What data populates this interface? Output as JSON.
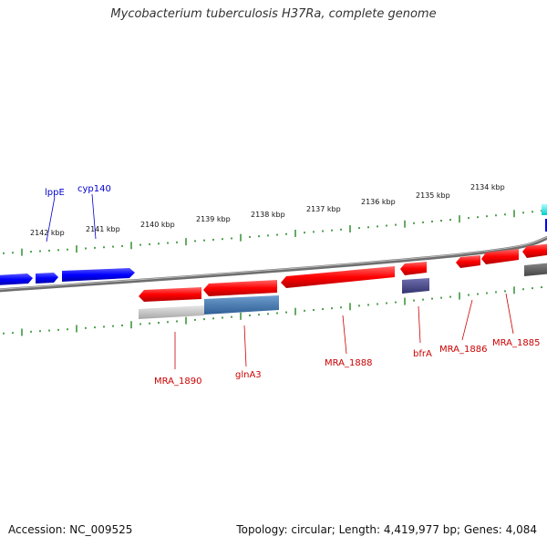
{
  "title": "Mycobacterium tuberculosis H37Ra, complete genome",
  "footer": {
    "accession": "Accession: NC_009525",
    "topology": "Topology: circular; Length: 4,419,977 bp; Genes: 4,084"
  },
  "colors": {
    "forward_gene": "#0000ff",
    "reverse_gene": "#ff0000",
    "reverse_label": "#cc0000",
    "forward_label": "#0000cc",
    "ruler": "#228822",
    "backbone": "#777777"
  },
  "ruler": {
    "ticks": [
      "2142 kbp",
      "2141 kbp",
      "2140 kbp",
      "2139 kbp",
      "2138 kbp",
      "2137 kbp",
      "2136 kbp",
      "2135 kbp",
      "2134 kbp"
    ]
  },
  "genes": {
    "forward_labels": [
      "lppE",
      "cyp140"
    ],
    "reverse_labels": [
      "MRA_1890",
      "glnA3",
      "MRA_1888",
      "bfrA",
      "MRA_1886",
      "MRA_1885"
    ]
  }
}
